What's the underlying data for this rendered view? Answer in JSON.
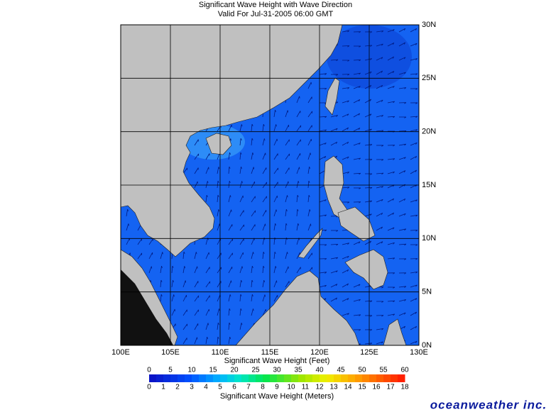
{
  "title": "Significant Wave Height with Wave Direction",
  "subtitle": "Valid For Jul-31-2005 06:00 GMT",
  "map": {
    "lon_labels": [
      "100E",
      "105E",
      "110E",
      "115E",
      "120E",
      "125E",
      "130E"
    ],
    "lat_labels": [
      "30N",
      "25N",
      "20N",
      "15N",
      "10N",
      "5N",
      "0N"
    ]
  },
  "legend": {
    "feet_title": "Significant Wave Height (Feet)",
    "feet_ticks": [
      0,
      5,
      10,
      15,
      20,
      25,
      30,
      35,
      40,
      45,
      50,
      55,
      60
    ],
    "meters_ticks": [
      0,
      1,
      2,
      3,
      4,
      5,
      6,
      7,
      8,
      9,
      10,
      11,
      12,
      13,
      14,
      15,
      16,
      17,
      18
    ],
    "meters_title": "Significant Wave Height (Meters)"
  },
  "logo": "oceanweather inc."
}
